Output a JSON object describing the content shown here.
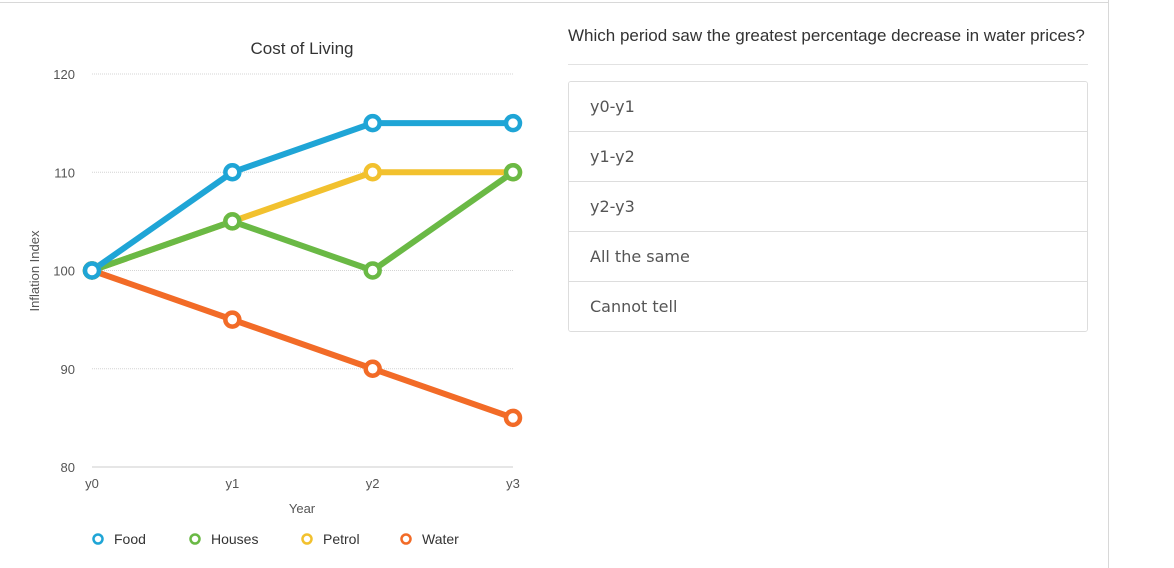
{
  "question": {
    "text": "Which period saw the greatest percentage decrease in water prices?",
    "options": [
      "y0-y1",
      "y1-y2",
      "y2-y3",
      "All the same",
      "Cannot tell"
    ]
  },
  "chart_data": {
    "type": "line",
    "title": "Cost of Living",
    "xlabel": "Year",
    "ylabel": "Inflation Index",
    "categories": [
      "y0",
      "y1",
      "y2",
      "y3"
    ],
    "ylim": [
      80,
      120
    ],
    "yticks": [
      80,
      90,
      100,
      110,
      120
    ],
    "grid": true,
    "legend_position": "bottom",
    "series": [
      {
        "name": "Food",
        "color": "#1fa5d6",
        "values": [
          100,
          110,
          115,
          115
        ]
      },
      {
        "name": "Houses",
        "color": "#6ab945",
        "values": [
          100,
          105,
          100,
          110
        ]
      },
      {
        "name": "Petrol",
        "color": "#f2c12e",
        "values": [
          100,
          105,
          110,
          110
        ]
      },
      {
        "name": "Water",
        "color": "#f26b27",
        "values": [
          100,
          95,
          90,
          85
        ]
      }
    ]
  }
}
